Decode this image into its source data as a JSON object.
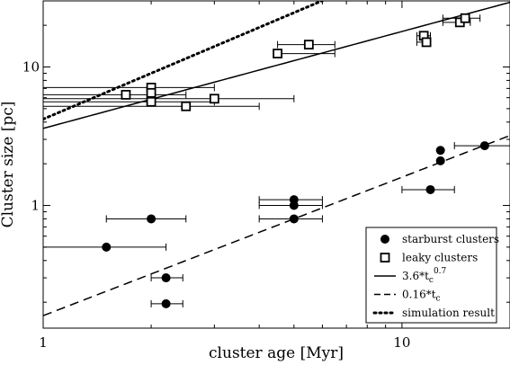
{
  "chart_data": {
    "type": "scatter",
    "xlabel": "cluster age [Myr]",
    "ylabel": "Cluster size [pc]",
    "x_scale": "log",
    "y_scale": "log",
    "xlim": [
      1,
      20
    ],
    "ylim": [
      0.13,
      30
    ],
    "x_ticks": [
      {
        "value": 1,
        "label": "1"
      },
      {
        "value": 10,
        "label": "10"
      }
    ],
    "y_ticks": [
      {
        "value": 1,
        "label": "1"
      },
      {
        "value": 10,
        "label": "10"
      }
    ],
    "series": [
      {
        "name": "starburst clusters",
        "marker": "filled-circle",
        "points": [
          {
            "x": 1.5,
            "y": 0.5,
            "xerr": [
              1.0,
              2.2
            ]
          },
          {
            "x": 2.0,
            "y": 0.8,
            "xerr": [
              1.5,
              2.5
            ]
          },
          {
            "x": 2.2,
            "y": 0.3,
            "xerr": [
              2.0,
              2.45
            ]
          },
          {
            "x": 2.2,
            "y": 0.195,
            "xerr": [
              2.0,
              2.45
            ]
          },
          {
            "x": 5.0,
            "y": 1.1,
            "xerr": [
              4.0,
              6.0
            ]
          },
          {
            "x": 5.0,
            "y": 1.0,
            "xerr": [
              4.0,
              6.0
            ]
          },
          {
            "x": 5.0,
            "y": 0.8,
            "xerr": [
              4.0,
              6.0
            ]
          },
          {
            "x": 12.0,
            "y": 1.3,
            "xerr": [
              10.0,
              14.0
            ]
          },
          {
            "x": 12.8,
            "y": 2.5,
            "xerr": null
          },
          {
            "x": 12.8,
            "y": 2.1,
            "xerr": null
          },
          {
            "x": 17.0,
            "y": 2.7,
            "xerr": [
              14.0,
              20.0
            ]
          }
        ]
      },
      {
        "name": "leaky clusters",
        "marker": "open-square",
        "points": [
          {
            "x": 1.7,
            "y": 6.3,
            "xerr": [
              1.0,
              2.5
            ]
          },
          {
            "x": 2.0,
            "y": 7.1,
            "xerr": [
              1.0,
              3.0
            ]
          },
          {
            "x": 2.0,
            "y": 6.5,
            "xerr": null
          },
          {
            "x": 2.0,
            "y": 5.6,
            "xerr": [
              1.0,
              3.0
            ]
          },
          {
            "x": 2.5,
            "y": 5.2,
            "xerr": [
              1.0,
              4.0
            ]
          },
          {
            "x": 3.0,
            "y": 5.9,
            "xerr": [
              1.0,
              5.0
            ]
          },
          {
            "x": 4.5,
            "y": 12.5,
            "xerr": [
              4.5,
              6.5
            ]
          },
          {
            "x": 5.5,
            "y": 14.5,
            "xerr": [
              4.5,
              6.5
            ]
          },
          {
            "x": 11.5,
            "y": 16.8,
            "xerr": [
              11.0,
              12.0
            ]
          },
          {
            "x": 11.7,
            "y": 15.1,
            "xerr": [
              11.0,
              12.0
            ]
          },
          {
            "x": 14.5,
            "y": 21.0,
            "xerr": [
              13.0,
              15.5
            ]
          },
          {
            "x": 15.0,
            "y": 22.5,
            "xerr": [
              13.0,
              16.5
            ]
          }
        ]
      },
      {
        "name": "3.6*t_c^0.7",
        "style": "solid-line",
        "function": {
          "coef": 3.6,
          "exp": 0.7
        }
      },
      {
        "name": "0.16*t_c",
        "style": "dashed-line",
        "function": {
          "coef": 0.16,
          "exp": 1.0
        }
      },
      {
        "name": "simulation result",
        "style": "dotted-line",
        "function": {
          "coef": 4.2,
          "exp": 1.1
        }
      }
    ],
    "legend": {
      "position": "bottom-right",
      "entries": [
        {
          "text": "starburst clusters",
          "marker": "filled-circle"
        },
        {
          "text": "leaky clusters",
          "marker": "open-square"
        },
        {
          "text_main": "3.6*t",
          "text_sub": "c",
          "text_sup": "0.7",
          "marker": "solid-line"
        },
        {
          "text_main": "0.16*t",
          "text_sub": "c",
          "text_sup": "",
          "marker": "dashed-line"
        },
        {
          "text": "simulation result",
          "marker": "dotted-line"
        }
      ]
    }
  }
}
